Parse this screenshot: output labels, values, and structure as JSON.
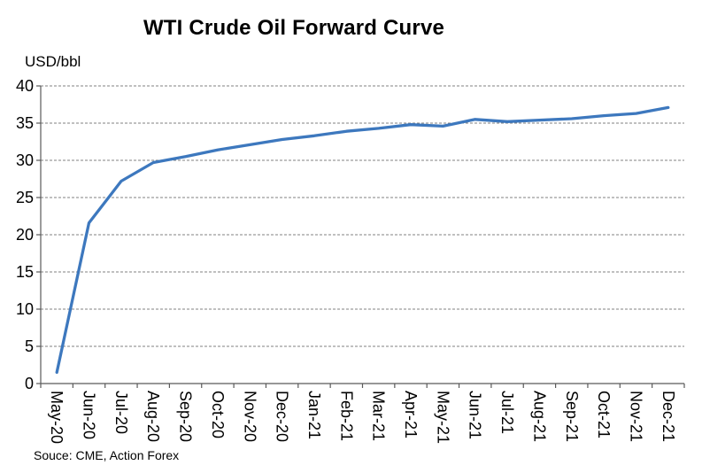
{
  "header": {
    "title": "WTI Crude Oil Forward Curve",
    "unit_label": "USD/bbl"
  },
  "footer": {
    "source_text": "Souce: CME, Action Forex"
  },
  "chart_data": {
    "type": "line",
    "title": "WTI Crude Oil Forward Curve",
    "ylabel": "USD/bbl",
    "xlabel": "",
    "categories": [
      "May-20",
      "Jun-20",
      "Jul-20",
      "Aug-20",
      "Sep-20",
      "Oct-20",
      "Nov-20",
      "Dec-20",
      "Jan-21",
      "Feb-21",
      "Mar-21",
      "Apr-21",
      "May-21",
      "Jun-21",
      "Jul-21",
      "Aug-21",
      "Sep-21",
      "Oct-21",
      "Nov-21",
      "Dec-21"
    ],
    "values": [
      1.5,
      21.6,
      27.2,
      29.7,
      30.5,
      31.4,
      32.1,
      32.8,
      33.3,
      33.9,
      34.3,
      34.8,
      34.6,
      35.5,
      35.2,
      35.4,
      35.6,
      36.0,
      36.3,
      37.1
    ],
    "ylim": [
      0,
      40
    ],
    "ytick_interval": 5,
    "yticks": [
      0,
      5,
      10,
      15,
      20,
      25,
      30,
      35,
      40
    ],
    "grid": "horizontal-dashed",
    "legend": "none",
    "source": "Souce: CME, Action Forex"
  },
  "style": {
    "line_color": "#3d78be",
    "grid_color": "#808080",
    "axis_color": "#595959",
    "text_color": "#000000",
    "background": "#ffffff"
  }
}
